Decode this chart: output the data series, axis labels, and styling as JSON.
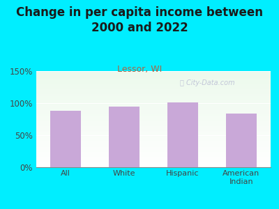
{
  "title": "Change in per capita income between\n2000 and 2022",
  "subtitle": "Lessor, WI",
  "categories": [
    "All",
    "White",
    "Hispanic",
    "American\nIndian"
  ],
  "values": [
    88,
    95,
    101,
    84
  ],
  "bar_color": "#c9a8d8",
  "background_outer": "#00eeff",
  "background_inner_left": "#d0eecc",
  "background_inner_right": "#f0fff0",
  "title_fontsize": 12,
  "subtitle_fontsize": 9,
  "title_color": "#1a1a1a",
  "subtitle_color": "#aa6644",
  "tick_color": "#444444",
  "ylim": [
    0,
    150
  ],
  "yticks": [
    0,
    50,
    100,
    150
  ],
  "watermark": "ⓘ City-Data.com"
}
